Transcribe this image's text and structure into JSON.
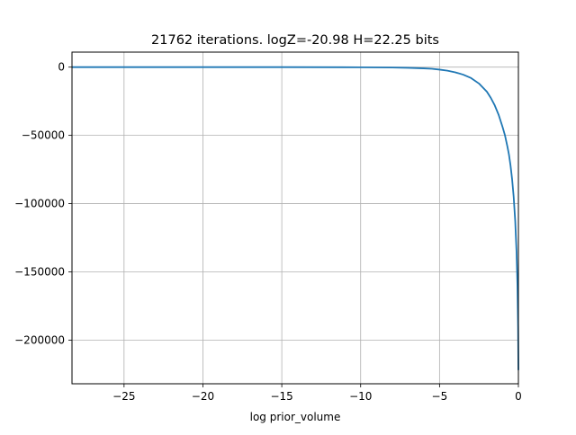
{
  "chart_data": {
    "type": "line",
    "title": "21762 iterations. logZ=-20.98 H=22.25 bits",
    "xlabel": "log prior_volume",
    "ylabel": "",
    "xlim": [
      -28.3,
      0
    ],
    "ylim": [
      -232000,
      11000
    ],
    "grid": true,
    "line_color": "#1f77b4",
    "grid_color": "#b0b0b0",
    "x_ticks": [
      -25,
      -20,
      -15,
      -10,
      -5,
      0
    ],
    "x_tick_labels": [
      "−25",
      "−20",
      "−15",
      "−10",
      "−5",
      "0"
    ],
    "y_ticks": [
      0,
      -50000,
      -100000,
      -150000,
      -200000
    ],
    "y_tick_labels": [
      "0",
      "−50000",
      "−100000",
      "−150000",
      "−200000"
    ],
    "series": [
      {
        "x": [
          -28.3,
          -25,
          -20,
          -15,
          -10,
          -8,
          -7,
          -6,
          -5.5,
          -5,
          -4.5,
          -4,
          -3.5,
          -3,
          -2.5,
          -2,
          -1.75,
          -1.5,
          -1.25,
          -1,
          -0.85,
          -0.7,
          -0.6,
          -0.5,
          -0.4,
          -0.3,
          -0.2,
          -0.12,
          -0.06,
          -0.02,
          0
        ],
        "y": [
          0,
          0,
          0,
          0,
          -100,
          -300,
          -500,
          -900,
          -1200,
          -1800,
          -2600,
          -3800,
          -5500,
          -8000,
          -12000,
          -18000,
          -22500,
          -28000,
          -35000,
          -44000,
          -50000,
          -58000,
          -64000,
          -72000,
          -82000,
          -95000,
          -113000,
          -135000,
          -160000,
          -190000,
          -222000
        ]
      }
    ]
  }
}
